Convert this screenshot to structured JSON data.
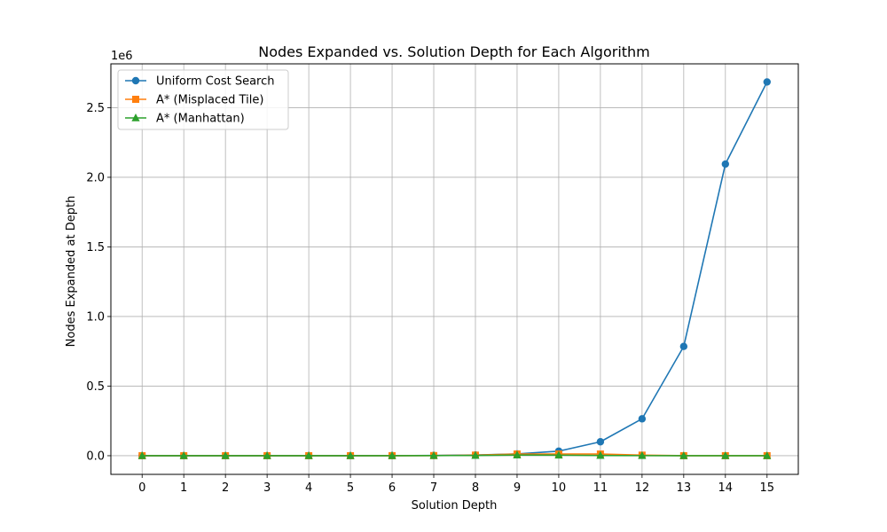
{
  "chart_data": {
    "type": "line",
    "title": "Nodes Expanded vs. Solution Depth for Each Algorithm",
    "xlabel": "Solution Depth",
    "ylabel": "Nodes Expanded at Depth",
    "y_offset_label": "1e6",
    "x": [
      0,
      1,
      2,
      3,
      4,
      5,
      6,
      7,
      8,
      9,
      10,
      11,
      12,
      13,
      14,
      15
    ],
    "xlim": [
      -0.75,
      15.75
    ],
    "ylim": [
      -0.134,
      2.815
    ],
    "yticks": [
      0.0,
      0.5,
      1.0,
      1.5,
      2.0,
      2.5
    ],
    "ytick_labels": [
      "0.0",
      "0.5",
      "1.0",
      "1.5",
      "2.0",
      "2.5"
    ],
    "grid": true,
    "legend_position": "top-left",
    "series": [
      {
        "name": "Uniform Cost Search",
        "color": "#1f77b4",
        "marker": "circle",
        "values": [
          0.0,
          0.0,
          0.0,
          0.0,
          0.0,
          0.0,
          0.0005,
          0.002,
          0.005,
          0.013,
          0.033,
          0.1,
          0.265,
          0.785,
          2.095,
          2.685
        ]
      },
      {
        "name": "A* (Misplaced Tile)",
        "color": "#ff7f0e",
        "marker": "square",
        "values": [
          0.0,
          0.0,
          0.0,
          0.0,
          0.0,
          0.0,
          0.0003,
          0.001,
          0.004,
          0.012,
          0.012,
          0.012,
          0.004,
          0.0,
          0.0,
          0.0
        ]
      },
      {
        "name": "A* (Manhattan)",
        "color": "#2ca02c",
        "marker": "triangle",
        "values": [
          0.0,
          0.0,
          0.0,
          0.0,
          0.0,
          0.0,
          0.0002,
          0.0008,
          0.002,
          0.005,
          0.004,
          0.002,
          0.0005,
          0.0,
          0.0,
          0.0
        ]
      }
    ]
  }
}
